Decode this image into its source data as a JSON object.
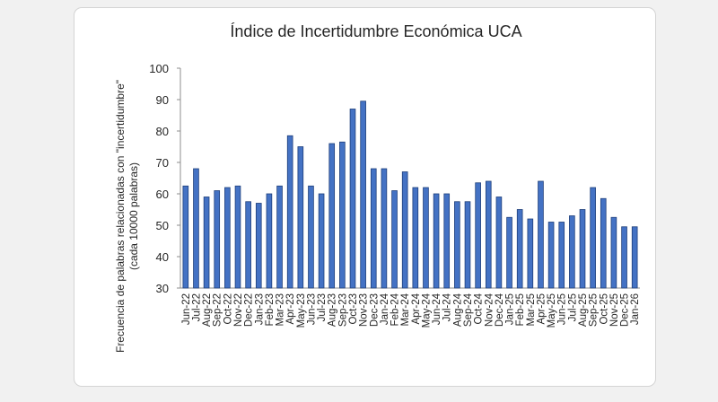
{
  "chart_data": {
    "type": "bar",
    "title": "Índice de Incertidumbre Económica UCA",
    "ylabel_line1": "Frecuencia de palabras relacionadas con \"incertidumbre\"",
    "ylabel_line2": "(cada 10000 palabras)",
    "xlabel": "",
    "ylim": [
      30,
      100
    ],
    "yticks": [
      30,
      40,
      50,
      60,
      70,
      80,
      90,
      100
    ],
    "grid": false,
    "bar_color": "#4472c4",
    "bar_edge": "#1f3f7a",
    "categories": [
      "Jun-22",
      "Jul-22",
      "Aug-22",
      "Sep-22",
      "Oct-22",
      "Nov-22",
      "Dec-22",
      "Jan-23",
      "Feb-23",
      "Mar-23",
      "Apr-23",
      "May-23",
      "Jun-23",
      "Jul-23",
      "Aug-23",
      "Sep-23",
      "Oct-23",
      "Nov-23",
      "Dec-23",
      "Jan-24",
      "Feb-24",
      "Mar-24",
      "Apr-24",
      "May-24",
      "Jun-24",
      "Jul-24",
      "Aug-24",
      "Sep-24",
      "Oct-24",
      "Nov-24",
      "Dec-24",
      "Jan-25",
      "Feb-25",
      "Mar-25",
      "Apr-25",
      "May-25",
      "Jun-25",
      "Jul-25",
      "Aug-25",
      "Sep-25",
      "Oct-25",
      "Nov-25",
      "Dec-25",
      "Jan-26"
    ],
    "values": [
      62.5,
      68,
      59,
      61,
      62,
      62.5,
      57.5,
      57,
      60,
      62.5,
      78.5,
      75,
      62.5,
      60,
      76,
      76.5,
      87,
      89.5,
      68,
      68,
      61,
      67,
      62,
      62,
      60,
      60,
      57.5,
      57.5,
      63.5,
      64,
      59,
      52.5,
      55,
      52,
      64,
      51,
      51,
      53,
      55,
      62,
      58.5,
      52.5,
      49.5,
      49.5
    ]
  }
}
